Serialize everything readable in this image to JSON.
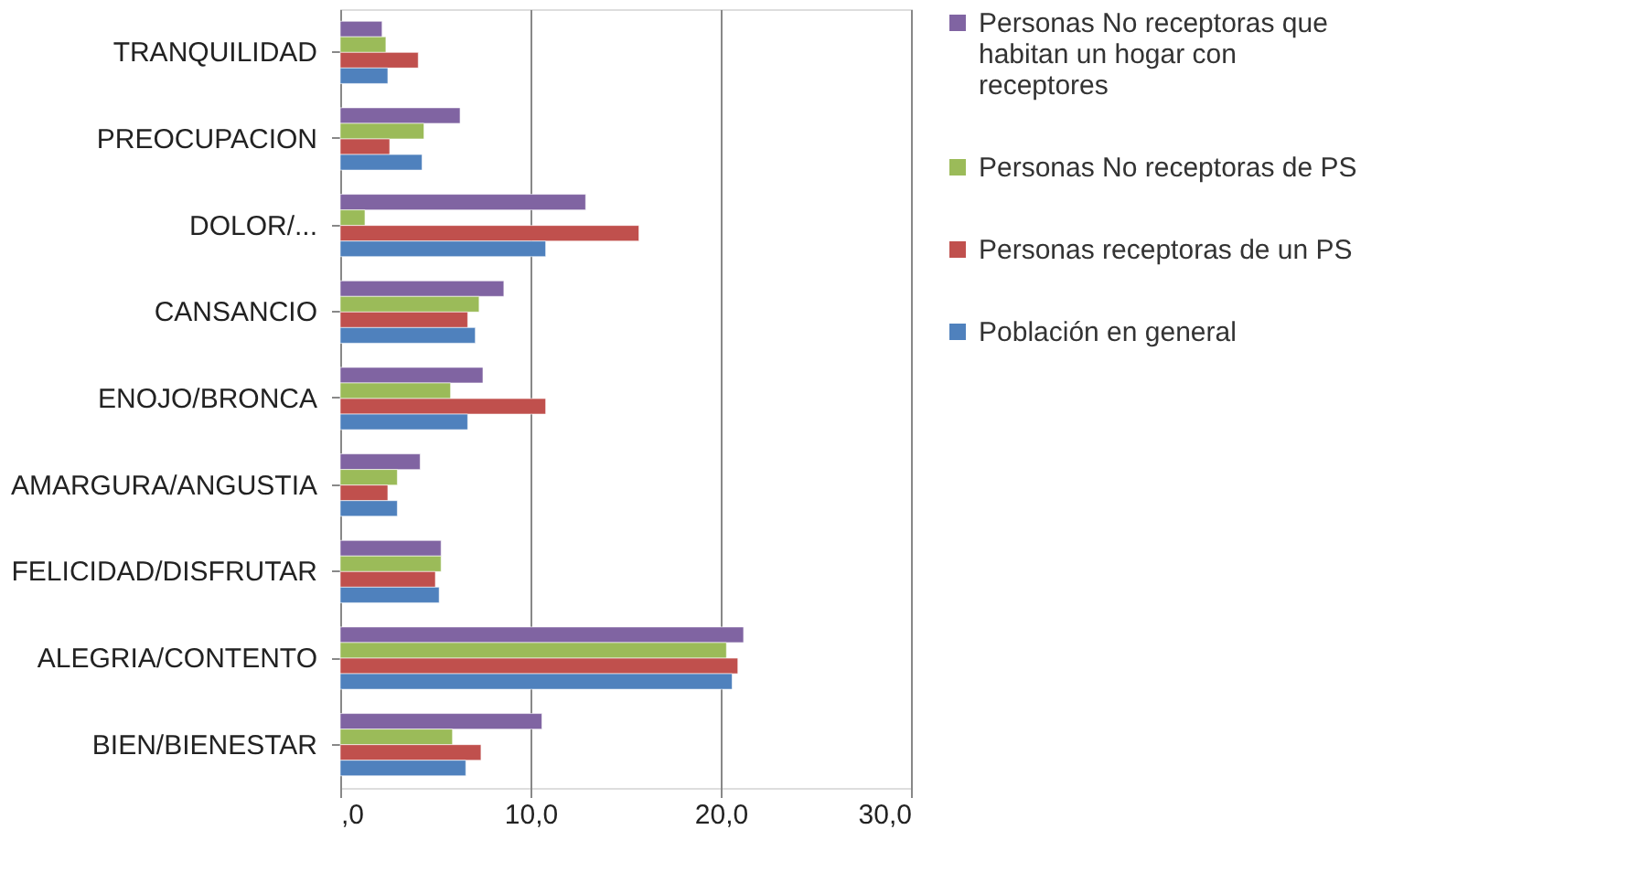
{
  "chart_data": {
    "type": "bar",
    "orientation": "horizontal",
    "categories": [
      "TRANQUILIDAD",
      "PREOCUPACION",
      "DOLOR/...",
      "CANSANCIO",
      "ENOJO/BRONCA",
      "AMARGURA/ANGUSTIA",
      "FELICIDAD/DISFRUTAR",
      "ALEGRIA/CONTENTO",
      "BIEN/BIENESTAR"
    ],
    "series": [
      {
        "name": "Personas No receptoras que habitan un hogar con receptores",
        "color": "#8064a2",
        "values": [
          2.2,
          6.3,
          12.9,
          8.6,
          7.5,
          4.2,
          5.3,
          21.2,
          10.6
        ]
      },
      {
        "name": "Personas No receptoras de PS",
        "color": "#9bbb59",
        "values": [
          2.4,
          4.4,
          1.3,
          7.3,
          5.8,
          3.0,
          5.3,
          20.3,
          5.9
        ]
      },
      {
        "name": "Personas receptoras de un PS",
        "color": "#c0504d",
        "values": [
          4.1,
          2.6,
          15.7,
          6.7,
          10.8,
          2.5,
          5.0,
          20.9,
          7.4
        ]
      },
      {
        "name": "Población en general",
        "color": "#4f81bd",
        "values": [
          2.5,
          4.3,
          10.8,
          7.1,
          6.7,
          3.0,
          5.2,
          20.6,
          6.6
        ]
      }
    ],
    "xlim": [
      0,
      30
    ],
    "xticks": [
      {
        "value": 0,
        "label": ",0"
      },
      {
        "value": 10,
        "label": "10,0"
      },
      {
        "value": 20,
        "label": "20,0"
      },
      {
        "value": 30,
        "label": "30,0"
      }
    ],
    "grid": "x",
    "legend": "right"
  }
}
